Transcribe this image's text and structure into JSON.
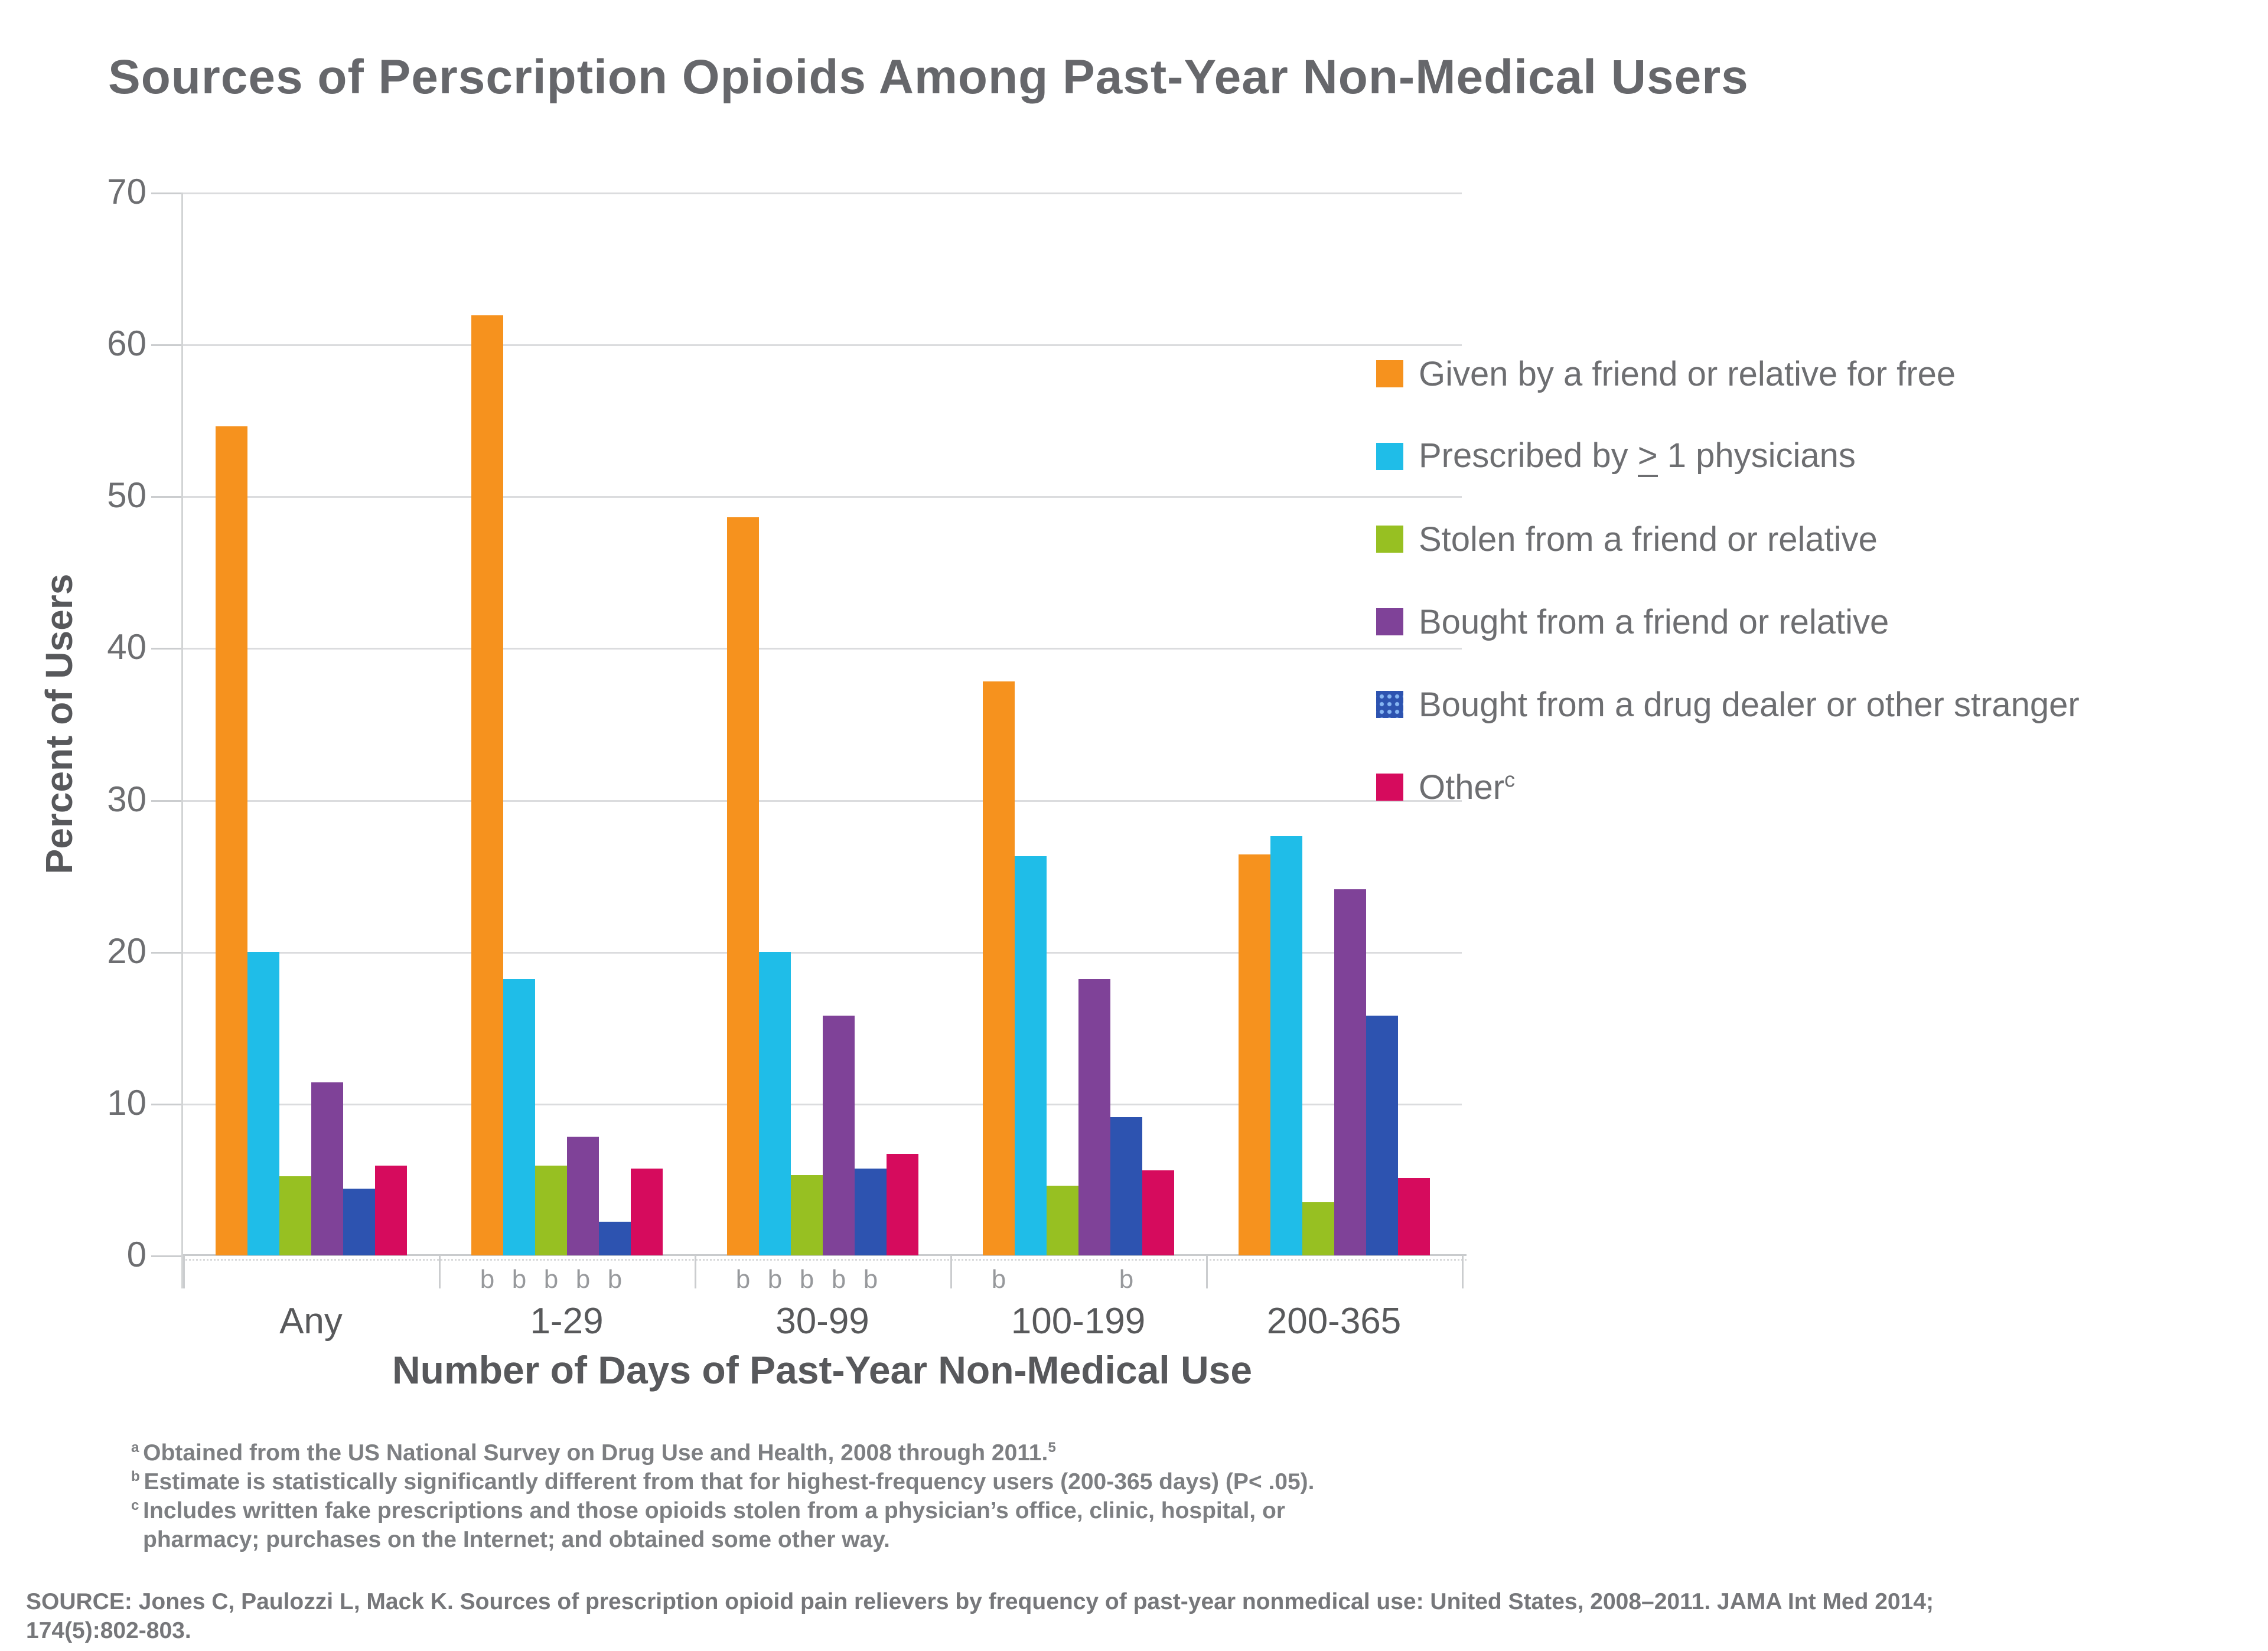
{
  "title": "Sources of Perscription Opioids Among Past-Year Non-Medical Users",
  "chart_data": {
    "type": "bar",
    "categories": [
      "Any",
      "1-29",
      "30-99",
      "100-199",
      "200-365"
    ],
    "series": [
      {
        "name": "Given by a friend or relative for free",
        "color": "#F6921E",
        "values": [
          54.6,
          61.9,
          48.6,
          37.8,
          26.4
        ]
      },
      {
        "name": "Prescribed by ≥ 1 physicians",
        "color": "#1FBDE8",
        "values": [
          20.0,
          18.2,
          20.0,
          26.3,
          27.6
        ],
        "legend_geq_style": true
      },
      {
        "name": "Stolen from a friend or relative",
        "color": "#97C022",
        "values": [
          5.2,
          5.9,
          5.3,
          4.6,
          3.5
        ]
      },
      {
        "name": "Bought from a friend or relative",
        "color": "#7F4298",
        "values": [
          11.4,
          7.8,
          15.8,
          18.2,
          24.1
        ]
      },
      {
        "name": "Bought from a drug dealer or other stranger",
        "color": "#2D53B0",
        "values": [
          4.4,
          2.2,
          5.7,
          9.1,
          15.8
        ],
        "legend_pattern": "dots"
      },
      {
        "name": "Other",
        "color": "#D60B5D",
        "values": [
          5.9,
          5.7,
          6.7,
          5.6,
          5.1
        ],
        "legend_superscript": "c"
      }
    ],
    "xlabel": "Number of Days of Past-Year Non-Medical Use",
    "ylabel": "Percent of Users",
    "ylim": [
      0,
      70
    ],
    "yticks": [
      0,
      10,
      20,
      30,
      40,
      50,
      60,
      70
    ],
    "grid": true,
    "legend_position": "right",
    "significance": {
      "marker": "b",
      "per_category": [
        [],
        [
          0,
          1,
          2,
          3,
          4
        ],
        [
          0,
          1,
          2,
          3,
          4
        ],
        [
          0,
          4
        ],
        []
      ]
    }
  },
  "footnotes": [
    {
      "sup": "a",
      "text": "Obtained from the US National Survey on Drug Use and Health, 2008 through 2011.",
      "tail_sup": "5"
    },
    {
      "sup": "b",
      "text": "Estimate is statistically significantly different from that for highest-frequency users (200-365 days) (P< .05).",
      "tail_sup": ""
    },
    {
      "sup": "c",
      "text": "Includes written fake prescriptions and those opioids stolen from a physician’s office, clinic, hospital, or",
      "tail_sup": ""
    },
    {
      "sup": "",
      "text": "pharmacy; purchases on the Internet; and obtained some other way.",
      "tail_sup": ""
    }
  ],
  "source": {
    "line1": "SOURCE: Jones C, Paulozzi L, Mack K. Sources of prescription opioid pain relievers by frequency of past-year nonmedical use: United States, 2008–2011. JAMA Int Med 2014;",
    "line2": "174(5):802-803."
  }
}
